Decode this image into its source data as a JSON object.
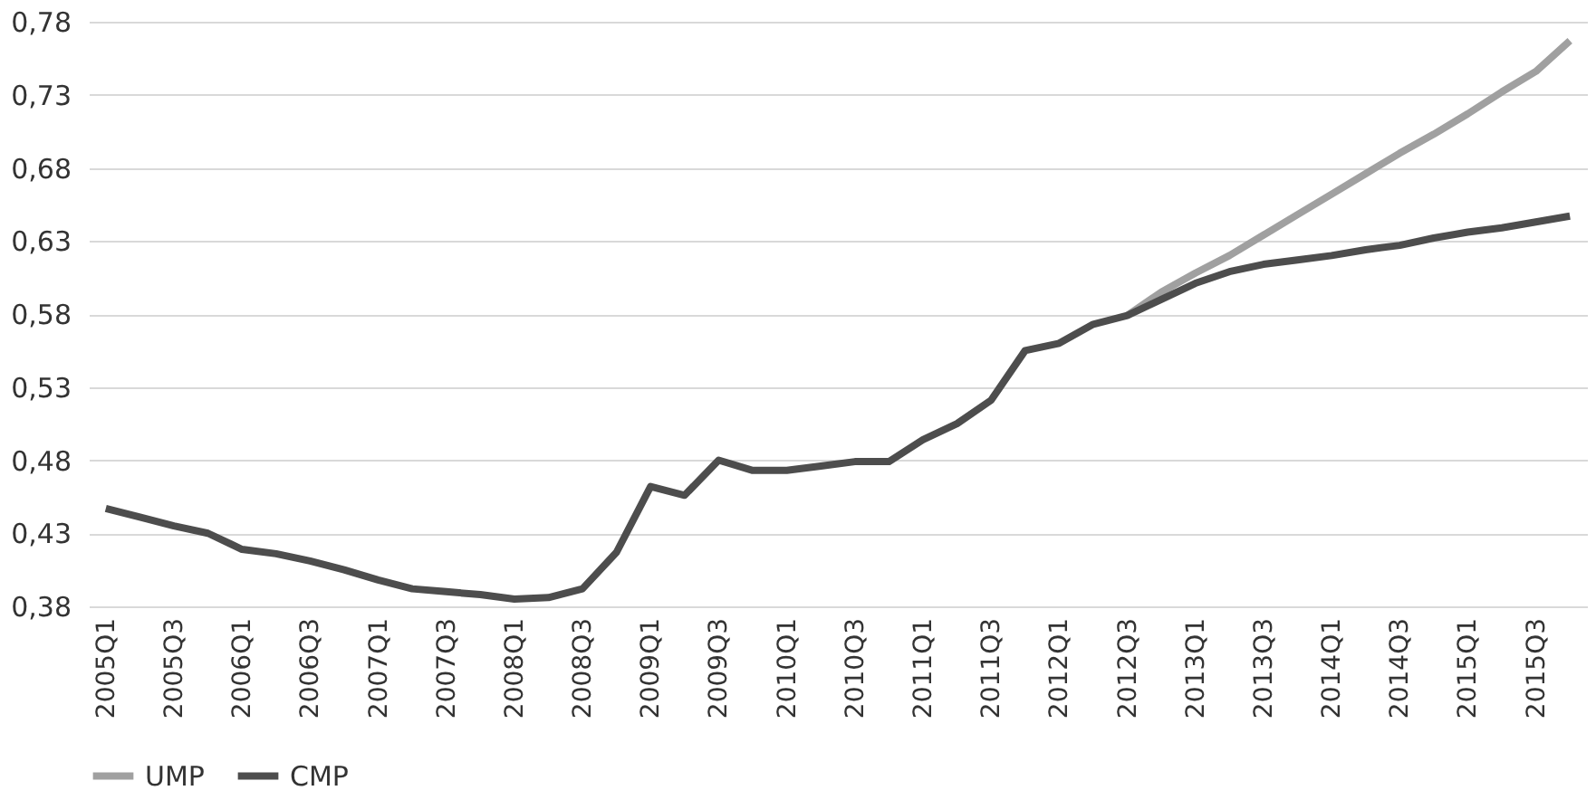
{
  "chart_data": {
    "type": "line",
    "categories": [
      "2005Q1",
      null,
      "2005Q3",
      null,
      "2006Q1",
      null,
      "2006Q3",
      null,
      "2007Q1",
      null,
      "2007Q3",
      null,
      "2008Q1",
      null,
      "2008Q3",
      null,
      "2009Q1",
      null,
      "2009Q3",
      null,
      "2010Q1",
      null,
      "2010Q3",
      null,
      "2011Q1",
      null,
      "2011Q3",
      null,
      "2012Q1",
      null,
      "2012Q3",
      null,
      "2013Q1",
      null,
      "2013Q3",
      null,
      "2014Q1",
      null,
      "2014Q3",
      null,
      "2015Q1",
      null,
      "2015Q3",
      null
    ],
    "series": [
      {
        "name": "UMP",
        "color": "#a0a0a0",
        "values": [
          null,
          null,
          null,
          null,
          null,
          null,
          null,
          null,
          null,
          null,
          null,
          null,
          null,
          null,
          null,
          null,
          null,
          null,
          null,
          null,
          null,
          null,
          null,
          null,
          null,
          null,
          null,
          null,
          null,
          null,
          0.579,
          0.595,
          0.608,
          0.62,
          0.634,
          0.648,
          0.662,
          0.676,
          0.69,
          0.703,
          0.717,
          0.732,
          0.746,
          0.767
        ]
      },
      {
        "name": "CMP",
        "color": "#4d4d4d",
        "values": [
          0.447,
          0.441,
          0.435,
          0.43,
          0.419,
          0.416,
          0.411,
          0.405,
          0.398,
          0.392,
          0.39,
          0.388,
          0.385,
          0.386,
          0.392,
          0.417,
          0.462,
          0.456,
          0.48,
          0.473,
          0.473,
          0.476,
          0.479,
          0.479,
          0.494,
          0.505,
          0.521,
          0.555,
          0.56,
          0.573,
          0.579,
          0.59,
          0.601,
          0.609,
          0.614,
          0.617,
          0.62,
          0.624,
          0.627,
          0.632,
          0.636,
          0.639,
          0.643,
          0.647
        ]
      }
    ],
    "ylim": [
      0.38,
      0.78
    ],
    "yticks": [
      {
        "value": 0.38,
        "label": "0,38"
      },
      {
        "value": 0.43,
        "label": "0,43"
      },
      {
        "value": 0.48,
        "label": "0,48"
      },
      {
        "value": 0.53,
        "label": "0,53"
      },
      {
        "value": 0.58,
        "label": "0,58"
      },
      {
        "value": 0.63,
        "label": "0,63"
      },
      {
        "value": 0.68,
        "label": "0,68"
      },
      {
        "value": 0.73,
        "label": "0,73"
      },
      {
        "value": 0.78,
        "label": "0,78"
      }
    ],
    "grid": "y",
    "legend": "bottom",
    "line_style": "solid",
    "marker": "none"
  }
}
